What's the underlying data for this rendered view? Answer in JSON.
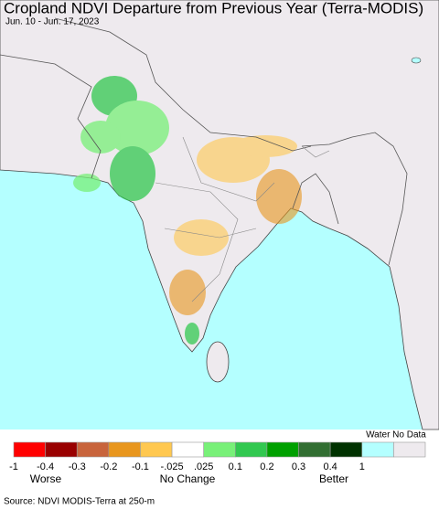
{
  "header": {
    "title": "Cropland NDVI Departure from Previous Year (Terra-MODIS)",
    "subtitle": "Jun. 10 - Jun. 17, 2023"
  },
  "legend": {
    "colors": [
      "#ff0000",
      "#990000",
      "#c8643c",
      "#e8961e",
      "#ffc850",
      "#ffffff",
      "#78f078",
      "#32c850",
      "#00a000",
      "#326e32",
      "#003200",
      "#b4ffff",
      "#eeeaee"
    ],
    "tick_labels": [
      "-1",
      "-0.4",
      "-0.3",
      "-0.2",
      "-0.1",
      "-.025",
      ".025",
      "0.1",
      "0.2",
      "0.3",
      "0.4",
      "1"
    ],
    "water_no_data": "Water No Data",
    "worse": "Worse",
    "no_change": "No Change",
    "better": "Better"
  },
  "footer": {
    "source": "Source: NDVI MODIS-Terra at 250-m"
  }
}
